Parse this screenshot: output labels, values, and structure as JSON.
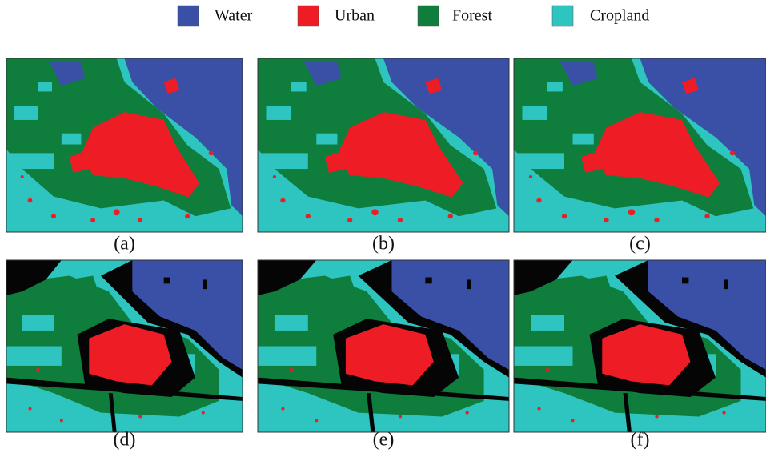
{
  "legend": [
    {
      "label": "Water",
      "color": "#3a4fa6"
    },
    {
      "label": "Urban",
      "color": "#ee1c25"
    },
    {
      "label": "Forest",
      "color": "#0f7d3c"
    },
    {
      "label": "Cropland",
      "color": "#2ec4c0"
    }
  ],
  "panels": [
    "(a)",
    "(b)",
    "(c)",
    "(d)",
    "(e)",
    "(f)"
  ]
}
